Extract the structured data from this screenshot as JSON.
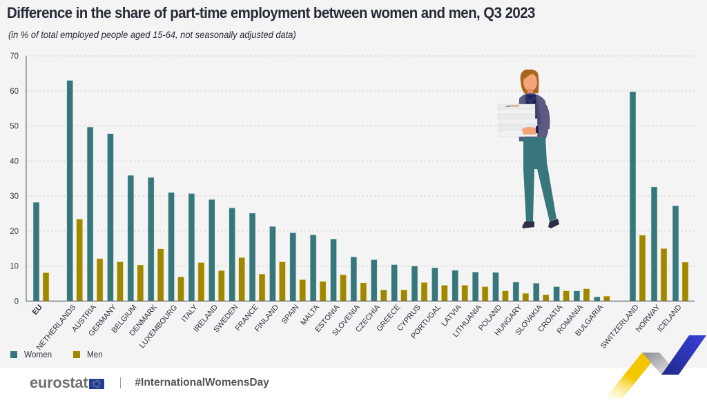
{
  "header": {
    "title": "Difference in the share of part-time employment between women and men, Q3 2023",
    "subtitle": "(in % of total employed people aged 15-64, not seasonally adjusted data)"
  },
  "colors": {
    "women": "#37777c",
    "men": "#a08700",
    "grid": "#cfcfcf",
    "axis": "#8a8a8a",
    "background": "#f4f4f4"
  },
  "chart_data": {
    "type": "bar",
    "title": "Difference in the share of part-time employment between women and men, Q3 2023",
    "subtitle": "(in % of total employed people aged 15-64, not seasonally adjusted data)",
    "xlabel": "",
    "ylabel": "",
    "ylim": [
      0,
      70
    ],
    "yticks": [
      0,
      10,
      20,
      30,
      40,
      50,
      60,
      70
    ],
    "grid": true,
    "legend_position": "bottom-left",
    "categories": [
      "EU",
      "NETHERLANDS",
      "AUSTRIA",
      "GERMANY",
      "BELGIUM",
      "DENMARK",
      "LUXEMBOURG",
      "ITALY",
      "IRELAND",
      "SWEDEN",
      "FRANCE",
      "FINLAND",
      "SPAIN",
      "MALTA",
      "ESTONIA",
      "SLOVENIA",
      "CZECHIA",
      "GREECE",
      "CYPRUS",
      "PORTUGAL",
      "LATVIA",
      "LITHUANIA",
      "POLAND",
      "HUNGARY",
      "SLOVAKIA",
      "CROATIA",
      "ROMANIA",
      "BULGARIA",
      "SWITZERLAND",
      "NORWAY",
      "ICELAND"
    ],
    "groups": [
      0,
      1,
      1,
      1,
      1,
      1,
      1,
      1,
      1,
      1,
      1,
      1,
      1,
      1,
      1,
      1,
      1,
      1,
      1,
      1,
      1,
      1,
      1,
      1,
      1,
      1,
      1,
      1,
      2,
      2,
      2
    ],
    "series": [
      {
        "name": "Women",
        "values": [
          28.2,
          63.0,
          49.7,
          47.8,
          35.9,
          35.3,
          31.0,
          30.7,
          29.0,
          26.6,
          25.1,
          21.3,
          19.5,
          18.9,
          17.7,
          12.6,
          11.8,
          10.4,
          10.0,
          9.5,
          8.8,
          8.3,
          8.2,
          5.4,
          5.1,
          4.1,
          2.9,
          1.2,
          59.8,
          32.6,
          27.2
        ]
      },
      {
        "name": "Men",
        "values": [
          8.1,
          23.4,
          12.1,
          11.2,
          10.3,
          14.9,
          6.9,
          11.0,
          8.7,
          12.4,
          7.7,
          11.2,
          6.1,
          5.6,
          7.5,
          5.2,
          3.2,
          3.2,
          5.3,
          4.5,
          4.5,
          4.1,
          2.9,
          2.2,
          1.8,
          2.9,
          3.5,
          1.4,
          18.8,
          15.0,
          11.1
        ]
      }
    ]
  },
  "legend": [
    {
      "label": "Women"
    },
    {
      "label": "Men"
    }
  ],
  "footer": {
    "logo_text": "eurostat",
    "flag_icon": "eu-flag-icon",
    "hashtag": "#InternationalWomensDay"
  },
  "decorations": {
    "illustration": "woman-carrying-papers-illustration",
    "ribbon": "eurostat-ribbon-graphic"
  }
}
